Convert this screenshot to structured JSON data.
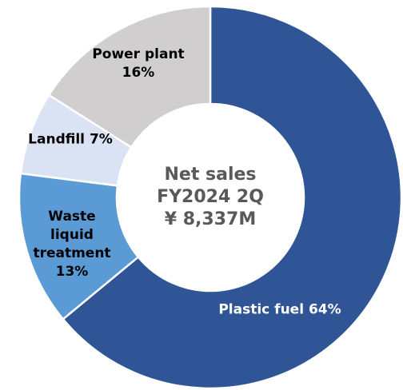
{
  "chart_data": {
    "type": "donut",
    "categories": [
      "Plastic fuel",
      "Waste liquid treatment",
      "Landfill",
      "Power plant"
    ],
    "values": [
      64,
      13,
      7,
      16
    ],
    "value_labels": [
      "64%",
      "13%",
      "7%",
      "16%"
    ],
    "colors": [
      "#2f5597",
      "#5b9bd5",
      "#dae3f3",
      "#d0cece"
    ],
    "center_label": [
      "Net sales",
      "FY2024 2Q",
      "¥ 8,337M"
    ]
  }
}
